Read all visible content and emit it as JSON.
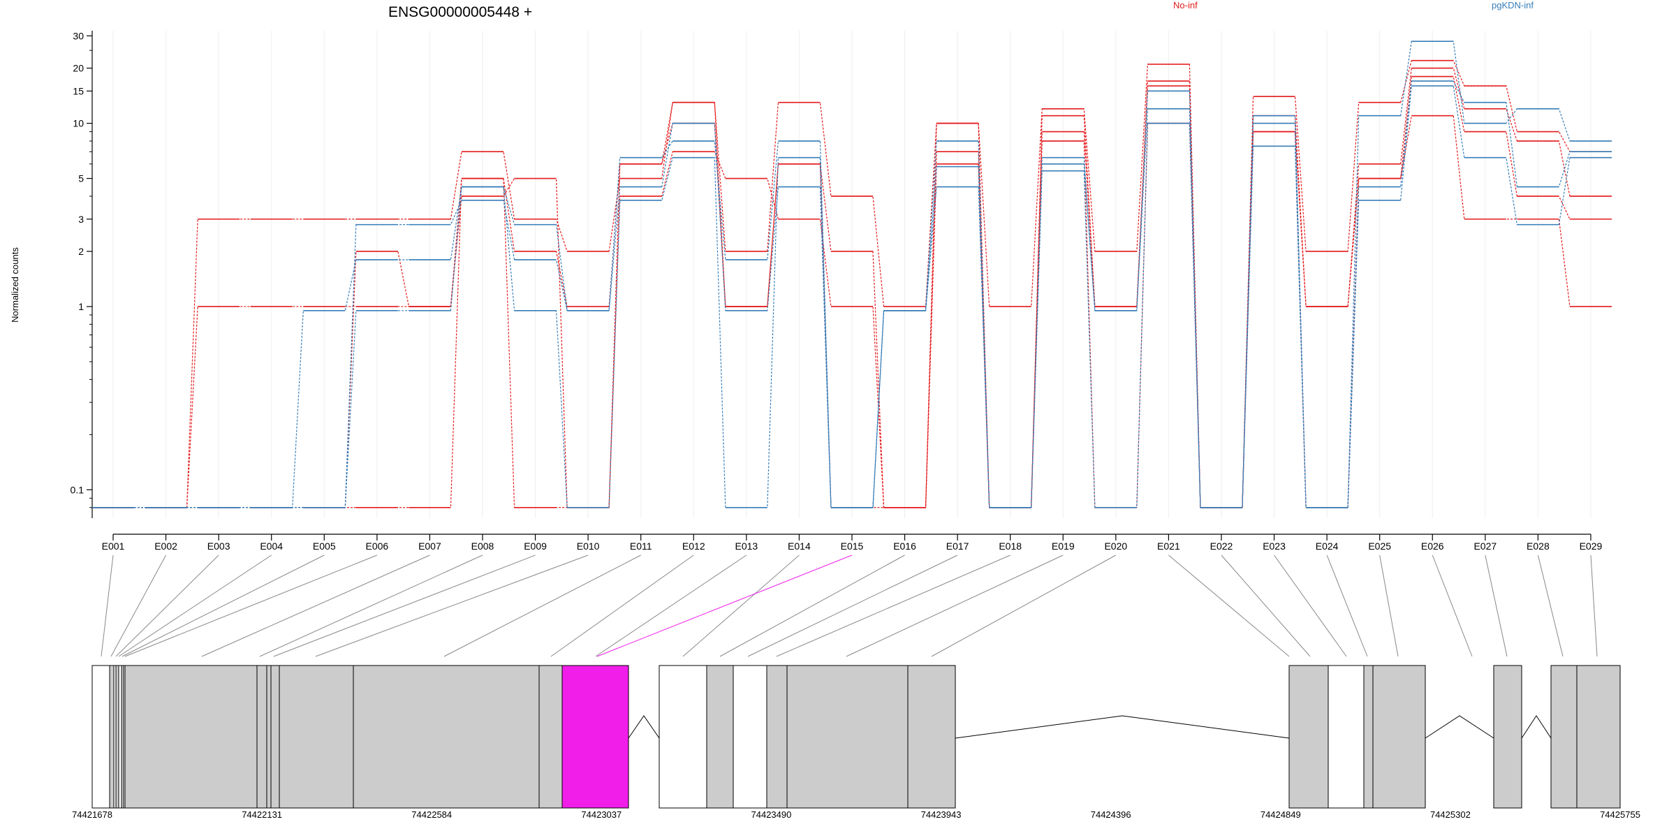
{
  "chart_data": {
    "type": "line",
    "title": "ENSG00000005448 +",
    "ylabel": "Normalized counts",
    "yscale": "log",
    "ylim": [
      0.07,
      32
    ],
    "yticks": [
      {
        "value": 0.1,
        "label": "0.1"
      },
      {
        "value": 1,
        "label": "1"
      },
      {
        "value": 2,
        "label": "2"
      },
      {
        "value": 3,
        "label": "3"
      },
      {
        "value": 5,
        "label": "5"
      },
      {
        "value": 10,
        "label": "10"
      },
      {
        "value": 15,
        "label": "15"
      },
      {
        "value": 20,
        "label": "20"
      },
      {
        "value": 30,
        "label": "30"
      }
    ],
    "categories": [
      "E001",
      "E002",
      "E003",
      "E004",
      "E005",
      "E006",
      "E007",
      "E008",
      "E009",
      "E010",
      "E011",
      "E012",
      "E013",
      "E014",
      "E015",
      "E016",
      "E017",
      "E018",
      "E019",
      "E020",
      "E021",
      "E022",
      "E023",
      "E024",
      "E025",
      "E026",
      "E027",
      "E028",
      "E029"
    ],
    "legend": [
      {
        "name": "No-inf",
        "color": "#e41a1c"
      },
      {
        "name": "pgKDN-inf",
        "color": "#377eb8"
      }
    ],
    "series": [
      {
        "group": "No-inf",
        "values": [
          0.08,
          0.08,
          3,
          3,
          3,
          3,
          3,
          7,
          3,
          2,
          5,
          13,
          2,
          13,
          4,
          1,
          10,
          1,
          12,
          2,
          21,
          0.08,
          14,
          2,
          13,
          22,
          16,
          9,
          7
        ]
      },
      {
        "group": "No-inf",
        "values": [
          0.08,
          0.08,
          1,
          1,
          1,
          1,
          1,
          5,
          2,
          1,
          6,
          10,
          1,
          6,
          2,
          0.08,
          7,
          0.08,
          9,
          1,
          17,
          0.08,
          11,
          1,
          6,
          20,
          12,
          8,
          4
        ]
      },
      {
        "group": "No-inf",
        "values": [
          0.08,
          0.08,
          0.08,
          0.08,
          0.08,
          2,
          1,
          4,
          5,
          0.08,
          4,
          7,
          5,
          3,
          1,
          0.08,
          6,
          0.08,
          8,
          0.08,
          10,
          0.08,
          9,
          0.08,
          5,
          18,
          9,
          4,
          3
        ]
      },
      {
        "group": "No-inf",
        "values": [
          0.08,
          0.08,
          0.08,
          0.08,
          0.08,
          0.08,
          0.08,
          5,
          0.08,
          0.08,
          6,
          13,
          1,
          6,
          0.08,
          0.08,
          10,
          0.08,
          11,
          1,
          16,
          0.08,
          9,
          1,
          5,
          11,
          3,
          3,
          1
        ]
      },
      {
        "group": "pgKDN-inf",
        "values": [
          0.08,
          0.08,
          0.08,
          0.08,
          0.95,
          1.8,
          1.8,
          4.5,
          2.8,
          0.95,
          6.5,
          8,
          1.8,
          8,
          0.08,
          0.95,
          4.5,
          0.08,
          6,
          0.95,
          12,
          0.08,
          10,
          0.08,
          11,
          28,
          10,
          12,
          8
        ]
      },
      {
        "group": "pgKDN-inf",
        "values": [
          0.08,
          0.08,
          0.08,
          0.08,
          0.08,
          2.8,
          2.8,
          3.8,
          1.8,
          0.95,
          4.5,
          10,
          0.95,
          4.5,
          0.08,
          0.95,
          8,
          0.08,
          6.5,
          0.95,
          15,
          0.08,
          11,
          0.08,
          4.5,
          17,
          13,
          4.5,
          7
        ]
      },
      {
        "group": "pgKDN-inf",
        "values": [
          0.08,
          0.08,
          0.08,
          0.08,
          0.08,
          0.95,
          0.95,
          4.5,
          0.95,
          0.08,
          3.8,
          6.5,
          0.08,
          6.5,
          0.08,
          0.95,
          5.8,
          0.08,
          5.5,
          0.08,
          10,
          0.08,
          7.5,
          0.08,
          3.8,
          16,
          6.5,
          2.8,
          6.5
        ]
      }
    ],
    "gene_model": {
      "coordinates": [
        "74421678",
        "74422131",
        "74422584",
        "74423037",
        "74423490",
        "74423943",
        "74424396",
        "74424849",
        "74425302",
        "74425755"
      ],
      "highlight_exon": "E015",
      "highlight_color": "#f01ee8",
      "exon_color": "#cccccc"
    }
  }
}
